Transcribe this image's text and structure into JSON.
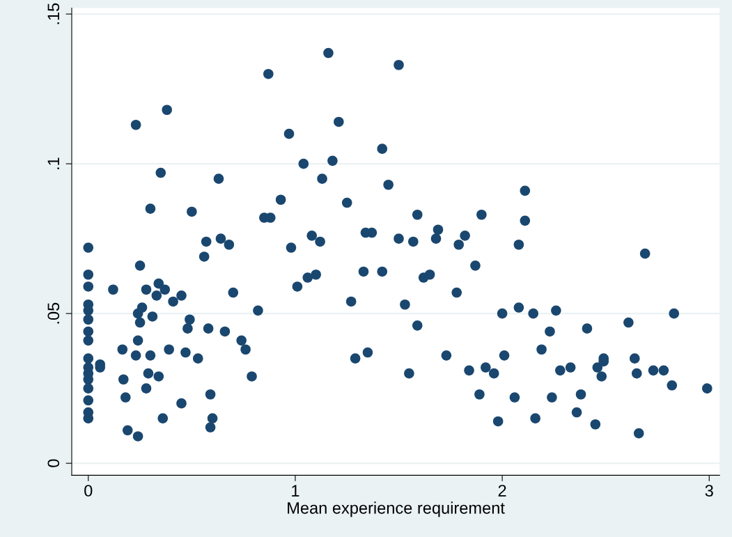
{
  "chart_data": {
    "type": "scatter",
    "xlabel": "Mean experience requirement",
    "xlim": [
      -0.08,
      3.05
    ],
    "xticks": [
      0,
      1,
      2,
      3
    ],
    "ylim": [
      -0.004,
      0.152
    ],
    "yticks": [
      {
        "value": 0,
        "label": "0"
      },
      {
        "value": 0.05,
        "label": ".05"
      },
      {
        "value": 0.1,
        "label": ".1"
      },
      {
        "value": 0.15,
        "label": ".15"
      }
    ],
    "grid": "y",
    "marker": "circle",
    "series": [
      {
        "color": "#1a476f",
        "x": [
          0,
          0,
          0,
          0,
          0,
          0,
          0,
          0,
          0,
          0,
          0,
          0,
          0,
          0,
          0,
          0,
          0.057,
          0.057,
          0.12,
          0.165,
          0.17,
          0.18,
          0.19,
          0.23,
          0.23,
          0.24,
          0.24,
          0.24,
          0.25,
          0.25,
          0.26,
          0.28,
          0.28,
          0.29,
          0.3,
          0.3,
          0.31,
          0.33,
          0.34,
          0.34,
          0.35,
          0.36,
          0.37,
          0.38,
          0.39,
          0.41,
          0.45,
          0.45,
          0.47,
          0.48,
          0.49,
          0.5,
          0.53,
          0.56,
          0.57,
          0.58,
          0.59,
          0.59,
          0.6,
          0.63,
          0.64,
          0.66,
          0.68,
          0.7,
          0.74,
          0.76,
          0.79,
          0.82,
          0.85,
          0.87,
          0.88,
          0.93,
          0.97,
          0.98,
          1.01,
          1.04,
          1.06,
          1.08,
          1.1,
          1.12,
          1.13,
          1.16,
          1.18,
          1.21,
          1.25,
          1.27,
          1.29,
          1.33,
          1.34,
          1.35,
          1.37,
          1.42,
          1.42,
          1.45,
          1.5,
          1.5,
          1.53,
          1.55,
          1.57,
          1.59,
          1.59,
          1.62,
          1.65,
          1.68,
          1.69,
          1.73,
          1.78,
          1.79,
          1.82,
          1.84,
          1.87,
          1.89,
          1.9,
          1.92,
          1.96,
          1.98,
          2.0,
          2.01,
          2.06,
          2.08,
          2.08,
          2.11,
          2.11,
          2.15,
          2.16,
          2.19,
          2.23,
          2.24,
          2.26,
          2.28,
          2.33,
          2.36,
          2.38,
          2.41,
          2.45,
          2.46,
          2.48,
          2.49,
          2.49,
          2.61,
          2.64,
          2.65,
          2.66,
          2.69,
          2.73,
          2.78,
          2.82,
          2.83,
          2.99
        ],
        "values": [
          0.072,
          0.063,
          0.059,
          0.053,
          0.051,
          0.048,
          0.044,
          0.041,
          0.035,
          0.032,
          0.03,
          0.028,
          0.025,
          0.021,
          0.017,
          0.015,
          0.033,
          0.032,
          0.058,
          0.038,
          0.028,
          0.022,
          0.011,
          0.036,
          0.113,
          0.05,
          0.041,
          0.009,
          0.066,
          0.047,
          0.052,
          0.025,
          0.058,
          0.03,
          0.036,
          0.085,
          0.049,
          0.056,
          0.06,
          0.029,
          0.097,
          0.015,
          0.058,
          0.118,
          0.038,
          0.054,
          0.02,
          0.056,
          0.037,
          0.045,
          0.048,
          0.084,
          0.035,
          0.069,
          0.074,
          0.045,
          0.023,
          0.012,
          0.015,
          0.095,
          0.075,
          0.044,
          0.073,
          0.057,
          0.041,
          0.038,
          0.029,
          0.051,
          0.082,
          0.13,
          0.082,
          0.088,
          0.11,
          0.072,
          0.059,
          0.1,
          0.062,
          0.076,
          0.063,
          0.074,
          0.095,
          0.137,
          0.101,
          0.114,
          0.087,
          0.054,
          0.035,
          0.064,
          0.077,
          0.037,
          0.077,
          0.105,
          0.064,
          0.093,
          0.075,
          0.133,
          0.053,
          0.03,
          0.074,
          0.046,
          0.083,
          0.062,
          0.063,
          0.075,
          0.078,
          0.036,
          0.057,
          0.073,
          0.076,
          0.031,
          0.066,
          0.023,
          0.083,
          0.032,
          0.03,
          0.014,
          0.05,
          0.036,
          0.022,
          0.073,
          0.052,
          0.091,
          0.081,
          0.05,
          0.015,
          0.038,
          0.044,
          0.022,
          0.051,
          0.031,
          0.032,
          0.017,
          0.023,
          0.045,
          0.013,
          0.032,
          0.029,
          0.035,
          0.034,
          0.047,
          0.035,
          0.03,
          0.01,
          0.07,
          0.031,
          0.031,
          0.026,
          0.05,
          0.025
        ]
      }
    ]
  }
}
